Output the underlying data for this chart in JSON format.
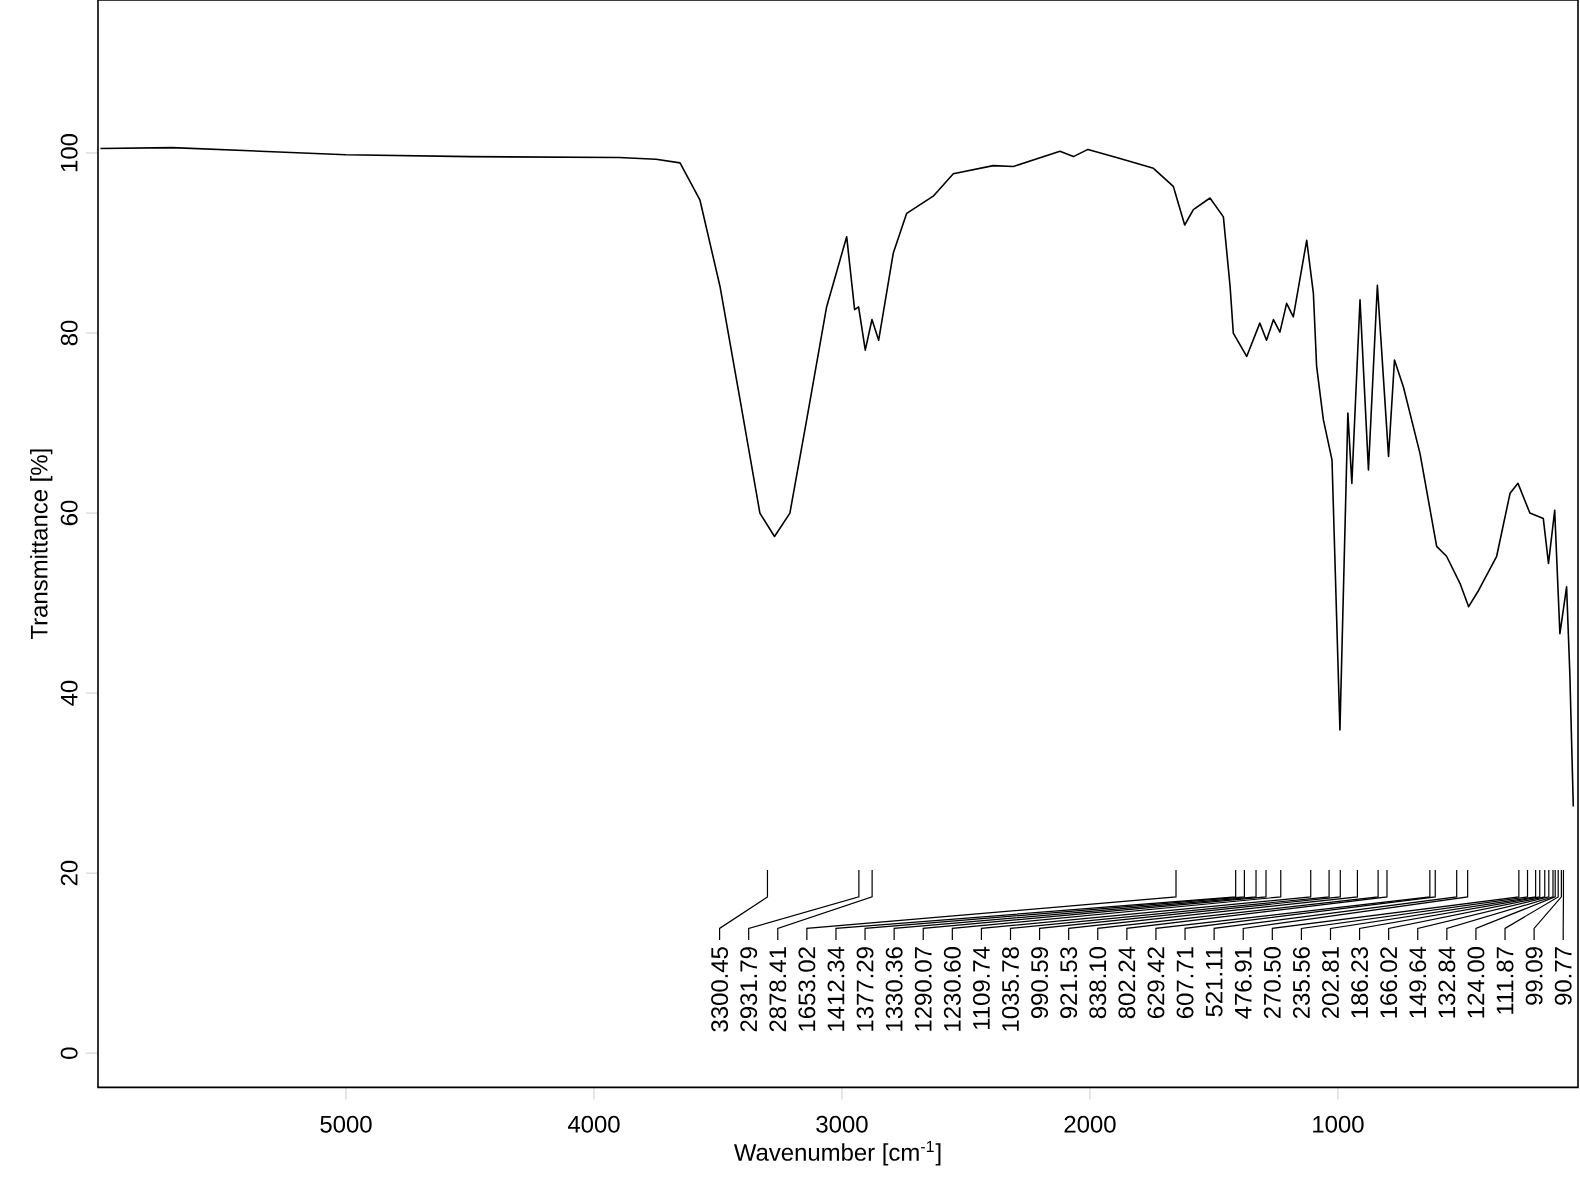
{
  "chart_data": {
    "type": "line",
    "xlabel": "Wavenumber [cm$^{-1}$]",
    "ylabel": "Transmittance [%]",
    "x": [
      5990,
      5700,
      5000,
      4500,
      3900,
      3750,
      3653,
      3573,
      3492,
      3411,
      3331,
      3272,
      3210,
      3142,
      3062,
      2981,
      2949,
      2933,
      2906,
      2879,
      2852,
      2793,
      2739,
      2632,
      2551,
      2390,
      2309,
      2121,
      2067,
      2008,
      1879,
      1744,
      1664,
      1618,
      1583,
      1516,
      1462,
      1435,
      1422,
      1368,
      1315,
      1288,
      1260,
      1234,
      1207,
      1180,
      1126,
      1099,
      1086,
      1059,
      1024,
      992,
      960,
      944,
      911,
      877,
      841,
      796,
      772,
      736,
      669,
      602,
      562,
      508,
      473,
      433,
      360,
      306,
      274,
      226,
      172,
      151,
      126,
      105,
      78,
      65,
      51
    ],
    "values": [
      100.5,
      100.6,
      99.8,
      99.6,
      99.5,
      99.3,
      98.9,
      94.8,
      85.2,
      72.6,
      60.0,
      57.4,
      60.0,
      70.4,
      82.9,
      90.7,
      82.6,
      82.9,
      78.1,
      81.5,
      79.2,
      88.9,
      93.3,
      95.2,
      97.7,
      98.6,
      98.5,
      100.2,
      99.6,
      100.4,
      99.4,
      98.3,
      96.3,
      92.0,
      93.7,
      95.0,
      92.9,
      85.2,
      80.0,
      77.4,
      81.1,
      79.2,
      81.5,
      80.1,
      83.3,
      81.8,
      90.3,
      84.4,
      76.3,
      70.4,
      65.9,
      35.9,
      71.1,
      63.3,
      83.7,
      64.8,
      85.3,
      66.3,
      77.0,
      74.0,
      66.6,
      56.3,
      55.2,
      52.2,
      49.6,
      51.4,
      55.2,
      62.2,
      63.3,
      60.0,
      59.4,
      54.4,
      60.3,
      46.6,
      51.8,
      42.2,
      27.4
    ],
    "color": "#000000",
    "xlim": [
      6000,
      32
    ],
    "ylim": [
      -3.8,
      117
    ],
    "xticks": [
      5000,
      4000,
      3000,
      2000,
      1000
    ],
    "yticks": [
      0,
      20,
      40,
      60,
      80,
      100
    ],
    "annotations": [
      "3300.45",
      "2931.79",
      "2878.41",
      "1653.02",
      "1412.34",
      "1377.29",
      "1330.36",
      "1290.07",
      "1230.60",
      "1109.74",
      "1035.78",
      "990.59",
      "921.53",
      "838.10",
      "802.24",
      "629.42",
      "607.71",
      "521.11",
      "476.91",
      "270.50",
      "235.56",
      "202.81",
      "186.23",
      "166.02",
      "149.64",
      "132.84",
      "124.00",
      "111.87",
      "99.09",
      "90.77"
    ]
  }
}
